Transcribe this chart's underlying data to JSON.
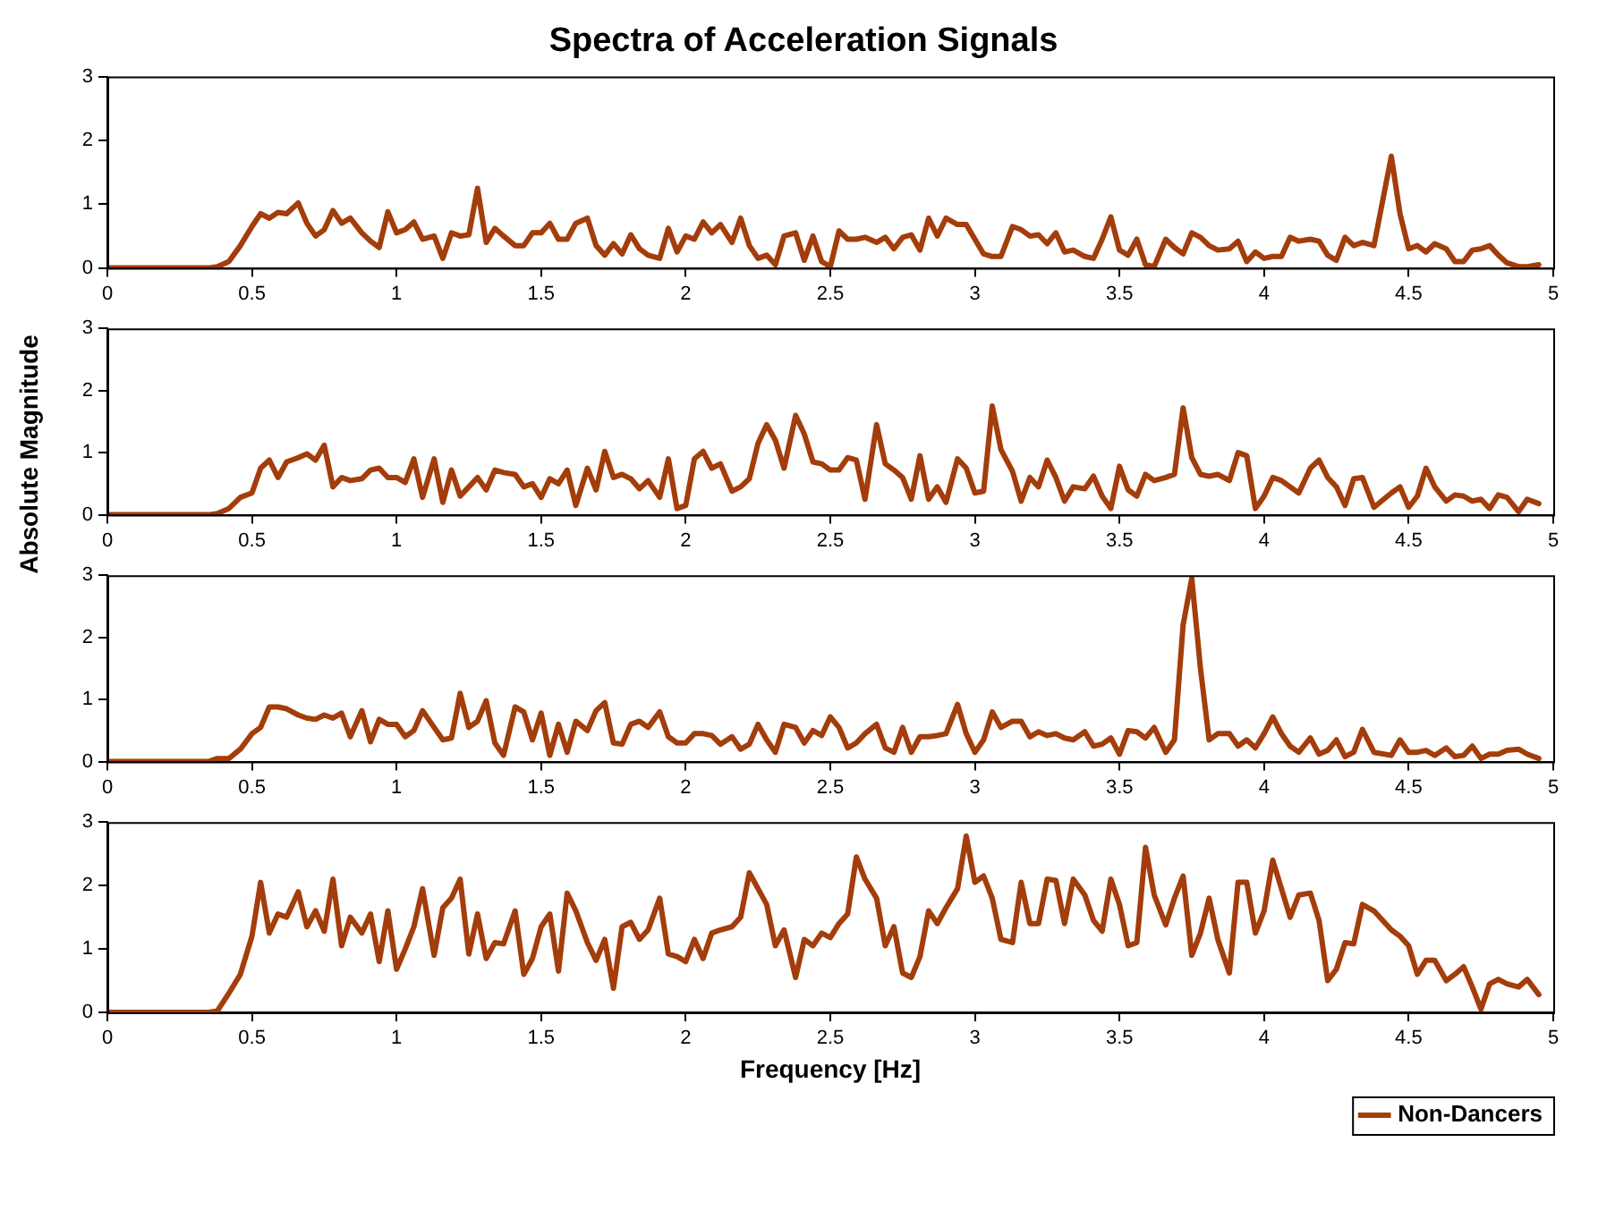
{
  "chart_data": [
    {
      "type": "line",
      "title": "Spectra of Acceleration Signals",
      "x": [
        0,
        0.35,
        0.38,
        0.42,
        0.46,
        0.5,
        0.53,
        0.56,
        0.59,
        0.62,
        0.66,
        0.69,
        0.72,
        0.75,
        0.78,
        0.81,
        0.84,
        0.88,
        0.91,
        0.94,
        0.97,
        1.0,
        1.03,
        1.06,
        1.09,
        1.13,
        1.16,
        1.19,
        1.22,
        1.25,
        1.28,
        1.31,
        1.34,
        1.37,
        1.41,
        1.44,
        1.47,
        1.5,
        1.53,
        1.56,
        1.59,
        1.62,
        1.66,
        1.69,
        1.72,
        1.75,
        1.78,
        1.81,
        1.84,
        1.87,
        1.91,
        1.94,
        1.97,
        2.0,
        2.03,
        2.06,
        2.09,
        2.12,
        2.16,
        2.19,
        2.22,
        2.25,
        2.28,
        2.31,
        2.34,
        2.38,
        2.41,
        2.44,
        2.47,
        2.5,
        2.53,
        2.56,
        2.59,
        2.62,
        2.66,
        2.69,
        2.72,
        2.75,
        2.78,
        2.81,
        2.84,
        2.87,
        2.9,
        2.94,
        2.97,
        3.0,
        3.03,
        3.06,
        3.09,
        3.13,
        3.16,
        3.19,
        3.22,
        3.25,
        3.28,
        3.31,
        3.34,
        3.38,
        3.41,
        3.44,
        3.47,
        3.5,
        3.53,
        3.56,
        3.59,
        3.62,
        3.66,
        3.69,
        3.72,
        3.75,
        3.78,
        3.81,
        3.84,
        3.88,
        3.91,
        3.94,
        3.97,
        4.0,
        4.03,
        4.06,
        4.09,
        4.12,
        4.16,
        4.19,
        4.22,
        4.25,
        4.28,
        4.31,
        4.34,
        4.38,
        4.44,
        4.47,
        4.5,
        4.53,
        4.56,
        4.59,
        4.63,
        4.66,
        4.69,
        4.72,
        4.75,
        4.78,
        4.81,
        4.84,
        4.88,
        4.91,
        4.95
      ],
      "series": [
        {
          "color": "#a33d0b",
          "values": [
            0,
            0,
            0.02,
            0.1,
            0.35,
            0.65,
            0.85,
            0.78,
            0.87,
            0.85,
            1.02,
            0.7,
            0.5,
            0.6,
            0.9,
            0.7,
            0.78,
            0.55,
            0.42,
            0.32,
            0.88,
            0.55,
            0.6,
            0.72,
            0.45,
            0.5,
            0.15,
            0.55,
            0.5,
            0.52,
            1.25,
            0.4,
            0.62,
            0.5,
            0.35,
            0.35,
            0.55,
            0.55,
            0.7,
            0.45,
            0.45,
            0.7,
            0.78,
            0.35,
            0.2,
            0.38,
            0.22,
            0.52,
            0.3,
            0.2,
            0.15,
            0.62,
            0.25,
            0.5,
            0.45,
            0.72,
            0.55,
            0.68,
            0.4,
            0.78,
            0.35,
            0.15,
            0.2,
            0.05,
            0.5,
            0.55,
            0.12,
            0.5,
            0.1,
            0.02,
            0.58,
            0.45,
            0.45,
            0.48,
            0.4,
            0.48,
            0.3,
            0.48,
            0.52,
            0.28,
            0.78,
            0.5,
            0.78,
            0.68,
            0.68,
            0.45,
            0.22,
            0.18,
            0.18,
            0.65,
            0.6,
            0.5,
            0.52,
            0.38,
            0.55,
            0.25,
            0.28,
            0.18,
            0.15,
            0.45,
            0.8,
            0.28,
            0.2,
            0.45,
            0.05,
            0.02,
            0.45,
            0.32,
            0.22,
            0.55,
            0.48,
            0.35,
            0.28,
            0.3,
            0.42,
            0.1,
            0.25,
            0.15,
            0.18,
            0.18,
            0.48,
            0.42,
            0.45,
            0.42,
            0.2,
            0.12,
            0.48,
            0.35,
            0.4,
            0.35,
            1.75,
            0.85,
            0.3,
            0.35,
            0.25,
            0.38,
            0.3,
            0.1,
            0.1,
            0.28,
            0.3,
            0.35,
            0.2,
            0.08,
            0.02,
            0.02,
            0.05
          ]
        }
      ],
      "xlim": [
        0,
        5
      ],
      "xticks": [
        0,
        0.5,
        1,
        1.5,
        2,
        2.5,
        3,
        3.5,
        4,
        4.5,
        5
      ],
      "ylim": [
        0,
        3
      ],
      "yticks": [
        0,
        1,
        2,
        3
      ],
      "grid": false,
      "legend": false,
      "marker": "none",
      "line_style": "solid"
    },
    {
      "type": "line",
      "ylabel": "Absolute Magnitude",
      "x": [
        0,
        0.35,
        0.38,
        0.42,
        0.46,
        0.5,
        0.53,
        0.56,
        0.59,
        0.62,
        0.66,
        0.69,
        0.72,
        0.75,
        0.78,
        0.81,
        0.84,
        0.88,
        0.91,
        0.94,
        0.97,
        1.0,
        1.03,
        1.06,
        1.09,
        1.13,
        1.16,
        1.19,
        1.22,
        1.25,
        1.28,
        1.31,
        1.34,
        1.37,
        1.41,
        1.44,
        1.47,
        1.5,
        1.53,
        1.56,
        1.59,
        1.62,
        1.66,
        1.69,
        1.72,
        1.75,
        1.78,
        1.81,
        1.84,
        1.87,
        1.91,
        1.94,
        1.97,
        2.0,
        2.03,
        2.06,
        2.09,
        2.12,
        2.16,
        2.19,
        2.22,
        2.25,
        2.28,
        2.31,
        2.34,
        2.38,
        2.41,
        2.44,
        2.47,
        2.5,
        2.53,
        2.56,
        2.59,
        2.62,
        2.66,
        2.69,
        2.72,
        2.75,
        2.78,
        2.81,
        2.84,
        2.87,
        2.9,
        2.94,
        2.97,
        3.0,
        3.03,
        3.06,
        3.09,
        3.13,
        3.16,
        3.19,
        3.22,
        3.25,
        3.28,
        3.31,
        3.34,
        3.38,
        3.41,
        3.44,
        3.47,
        3.5,
        3.53,
        3.56,
        3.59,
        3.62,
        3.66,
        3.69,
        3.72,
        3.75,
        3.78,
        3.81,
        3.84,
        3.88,
        3.91,
        3.94,
        3.97,
        4.0,
        4.03,
        4.06,
        4.09,
        4.12,
        4.16,
        4.19,
        4.22,
        4.25,
        4.28,
        4.31,
        4.34,
        4.38,
        4.44,
        4.47,
        4.5,
        4.53,
        4.56,
        4.59,
        4.63,
        4.66,
        4.69,
        4.72,
        4.75,
        4.78,
        4.81,
        4.84,
        4.88,
        4.91,
        4.95
      ],
      "series": [
        {
          "color": "#a33d0b",
          "values": [
            0,
            0,
            0.02,
            0.1,
            0.28,
            0.35,
            0.75,
            0.88,
            0.6,
            0.85,
            0.92,
            0.98,
            0.88,
            1.12,
            0.45,
            0.6,
            0.55,
            0.58,
            0.72,
            0.75,
            0.6,
            0.6,
            0.52,
            0.9,
            0.28,
            0.9,
            0.2,
            0.72,
            0.3,
            0.45,
            0.6,
            0.4,
            0.72,
            0.68,
            0.65,
            0.45,
            0.5,
            0.28,
            0.58,
            0.5,
            0.72,
            0.15,
            0.75,
            0.4,
            1.02,
            0.6,
            0.65,
            0.58,
            0.42,
            0.55,
            0.28,
            0.9,
            0.1,
            0.15,
            0.9,
            1.02,
            0.75,
            0.82,
            0.38,
            0.45,
            0.58,
            1.15,
            1.45,
            1.2,
            0.75,
            1.6,
            1.3,
            0.85,
            0.82,
            0.72,
            0.72,
            0.92,
            0.88,
            0.25,
            1.45,
            0.82,
            0.72,
            0.6,
            0.25,
            0.95,
            0.25,
            0.45,
            0.2,
            0.9,
            0.75,
            0.35,
            0.38,
            1.75,
            1.05,
            0.7,
            0.22,
            0.6,
            0.45,
            0.88,
            0.6,
            0.22,
            0.45,
            0.42,
            0.62,
            0.3,
            0.1,
            0.78,
            0.4,
            0.3,
            0.65,
            0.55,
            0.6,
            0.65,
            1.72,
            0.92,
            0.65,
            0.62,
            0.65,
            0.55,
            1.0,
            0.95,
            0.1,
            0.3,
            0.6,
            0.55,
            0.45,
            0.35,
            0.75,
            0.88,
            0.6,
            0.45,
            0.15,
            0.58,
            0.6,
            0.12,
            0.35,
            0.45,
            0.12,
            0.3,
            0.75,
            0.45,
            0.22,
            0.32,
            0.3,
            0.22,
            0.25,
            0.1,
            0.32,
            0.28,
            0.05,
            0.25,
            0.18
          ]
        }
      ],
      "xlim": [
        0,
        5
      ],
      "xticks": [
        0,
        0.5,
        1,
        1.5,
        2,
        2.5,
        3,
        3.5,
        4,
        4.5,
        5
      ],
      "ylim": [
        0,
        3
      ],
      "yticks": [
        0,
        1,
        2,
        3
      ],
      "grid": false,
      "legend": false,
      "marker": "none",
      "line_style": "solid"
    },
    {
      "type": "line",
      "x": [
        0,
        0.35,
        0.38,
        0.42,
        0.46,
        0.5,
        0.53,
        0.56,
        0.59,
        0.62,
        0.66,
        0.69,
        0.72,
        0.75,
        0.78,
        0.81,
        0.84,
        0.88,
        0.91,
        0.94,
        0.97,
        1.0,
        1.03,
        1.06,
        1.09,
        1.13,
        1.16,
        1.19,
        1.22,
        1.25,
        1.28,
        1.31,
        1.34,
        1.37,
        1.41,
        1.44,
        1.47,
        1.5,
        1.53,
        1.56,
        1.59,
        1.62,
        1.66,
        1.69,
        1.72,
        1.75,
        1.78,
        1.81,
        1.84,
        1.87,
        1.91,
        1.94,
        1.97,
        2.0,
        2.03,
        2.06,
        2.09,
        2.12,
        2.16,
        2.19,
        2.22,
        2.25,
        2.28,
        2.31,
        2.34,
        2.38,
        2.41,
        2.44,
        2.47,
        2.5,
        2.53,
        2.56,
        2.59,
        2.62,
        2.66,
        2.69,
        2.72,
        2.75,
        2.78,
        2.81,
        2.84,
        2.87,
        2.9,
        2.94,
        2.97,
        3.0,
        3.03,
        3.06,
        3.09,
        3.13,
        3.16,
        3.19,
        3.22,
        3.25,
        3.28,
        3.31,
        3.34,
        3.38,
        3.41,
        3.44,
        3.47,
        3.5,
        3.53,
        3.56,
        3.59,
        3.62,
        3.66,
        3.69,
        3.72,
        3.75,
        3.78,
        3.81,
        3.84,
        3.88,
        3.91,
        3.94,
        3.97,
        4.0,
        4.03,
        4.06,
        4.09,
        4.12,
        4.16,
        4.19,
        4.22,
        4.25,
        4.28,
        4.31,
        4.34,
        4.38,
        4.44,
        4.47,
        4.5,
        4.53,
        4.56,
        4.59,
        4.63,
        4.66,
        4.69,
        4.72,
        4.75,
        4.78,
        4.81,
        4.84,
        4.88,
        4.91,
        4.95
      ],
      "series": [
        {
          "color": "#a33d0b",
          "values": [
            0,
            0,
            0.05,
            0.05,
            0.2,
            0.45,
            0.55,
            0.88,
            0.88,
            0.85,
            0.75,
            0.7,
            0.68,
            0.75,
            0.7,
            0.78,
            0.4,
            0.82,
            0.32,
            0.68,
            0.6,
            0.6,
            0.4,
            0.5,
            0.82,
            0.55,
            0.35,
            0.38,
            1.1,
            0.55,
            0.65,
            0.98,
            0.3,
            0.1,
            0.88,
            0.8,
            0.35,
            0.78,
            0.1,
            0.6,
            0.15,
            0.65,
            0.5,
            0.82,
            0.95,
            0.3,
            0.28,
            0.6,
            0.65,
            0.55,
            0.8,
            0.4,
            0.3,
            0.3,
            0.45,
            0.45,
            0.42,
            0.28,
            0.4,
            0.2,
            0.28,
            0.6,
            0.35,
            0.15,
            0.6,
            0.55,
            0.3,
            0.5,
            0.42,
            0.72,
            0.55,
            0.22,
            0.3,
            0.45,
            0.6,
            0.22,
            0.15,
            0.55,
            0.15,
            0.4,
            0.4,
            0.42,
            0.45,
            0.92,
            0.45,
            0.15,
            0.35,
            0.8,
            0.55,
            0.65,
            0.65,
            0.4,
            0.48,
            0.42,
            0.45,
            0.38,
            0.35,
            0.48,
            0.25,
            0.28,
            0.38,
            0.12,
            0.5,
            0.48,
            0.38,
            0.55,
            0.15,
            0.35,
            2.2,
            2.95,
            1.5,
            0.35,
            0.45,
            0.45,
            0.25,
            0.35,
            0.22,
            0.45,
            0.72,
            0.45,
            0.25,
            0.15,
            0.38,
            0.12,
            0.18,
            0.35,
            0.08,
            0.15,
            0.52,
            0.15,
            0.1,
            0.35,
            0.15,
            0.15,
            0.18,
            0.1,
            0.22,
            0.08,
            0.1,
            0.25,
            0.05,
            0.12,
            0.12,
            0.18,
            0.2,
            0.12,
            0.05
          ]
        }
      ],
      "xlim": [
        0,
        5
      ],
      "xticks": [
        0,
        0.5,
        1,
        1.5,
        2,
        2.5,
        3,
        3.5,
        4,
        4.5,
        5
      ],
      "ylim": [
        0,
        3
      ],
      "yticks": [
        0,
        1,
        2,
        3
      ],
      "grid": false,
      "legend": false,
      "marker": "none",
      "line_style": "solid"
    },
    {
      "type": "line",
      "xlabel": "Frequency [Hz]",
      "x": [
        0,
        0.35,
        0.38,
        0.42,
        0.46,
        0.5,
        0.53,
        0.56,
        0.59,
        0.62,
        0.66,
        0.69,
        0.72,
        0.75,
        0.78,
        0.81,
        0.84,
        0.88,
        0.91,
        0.94,
        0.97,
        1.0,
        1.03,
        1.06,
        1.09,
        1.13,
        1.16,
        1.19,
        1.22,
        1.25,
        1.28,
        1.31,
        1.34,
        1.37,
        1.41,
        1.44,
        1.47,
        1.5,
        1.53,
        1.56,
        1.59,
        1.62,
        1.66,
        1.69,
        1.72,
        1.75,
        1.78,
        1.81,
        1.84,
        1.87,
        1.91,
        1.94,
        1.97,
        2.0,
        2.03,
        2.06,
        2.09,
        2.12,
        2.16,
        2.19,
        2.22,
        2.25,
        2.28,
        2.31,
        2.34,
        2.38,
        2.41,
        2.44,
        2.47,
        2.5,
        2.53,
        2.56,
        2.59,
        2.62,
        2.66,
        2.69,
        2.72,
        2.75,
        2.78,
        2.81,
        2.84,
        2.87,
        2.9,
        2.94,
        2.97,
        3.0,
        3.03,
        3.06,
        3.09,
        3.13,
        3.16,
        3.19,
        3.22,
        3.25,
        3.28,
        3.31,
        3.34,
        3.38,
        3.41,
        3.44,
        3.47,
        3.5,
        3.53,
        3.56,
        3.59,
        3.62,
        3.66,
        3.69,
        3.72,
        3.75,
        3.78,
        3.81,
        3.84,
        3.88,
        3.91,
        3.94,
        3.97,
        4.0,
        4.03,
        4.06,
        4.09,
        4.12,
        4.16,
        4.19,
        4.22,
        4.25,
        4.28,
        4.31,
        4.34,
        4.38,
        4.44,
        4.47,
        4.5,
        4.53,
        4.56,
        4.59,
        4.63,
        4.66,
        4.69,
        4.72,
        4.75,
        4.78,
        4.81,
        4.84,
        4.88,
        4.91,
        4.95
      ],
      "series": [
        {
          "name": "Non-Dancers",
          "color": "#a33d0b",
          "values": [
            0,
            0,
            0.02,
            0.3,
            0.6,
            1.2,
            2.05,
            1.25,
            1.55,
            1.5,
            1.9,
            1.35,
            1.6,
            1.28,
            2.1,
            1.05,
            1.5,
            1.25,
            1.55,
            0.8,
            1.6,
            0.68,
            1.0,
            1.35,
            1.95,
            0.9,
            1.65,
            1.8,
            2.1,
            0.92,
            1.55,
            0.85,
            1.1,
            1.08,
            1.6,
            0.6,
            0.85,
            1.35,
            1.55,
            0.65,
            1.88,
            1.6,
            1.1,
            0.82,
            1.15,
            0.38,
            1.35,
            1.42,
            1.15,
            1.3,
            1.8,
            0.92,
            0.88,
            0.8,
            1.15,
            0.85,
            1.25,
            1.3,
            1.35,
            1.5,
            2.2,
            1.95,
            1.7,
            1.05,
            1.3,
            0.55,
            1.15,
            1.05,
            1.25,
            1.18,
            1.4,
            1.55,
            2.45,
            2.1,
            1.8,
            1.05,
            1.35,
            0.62,
            0.55,
            0.88,
            1.6,
            1.4,
            1.65,
            1.95,
            2.78,
            2.05,
            2.15,
            1.8,
            1.15,
            1.1,
            2.05,
            1.4,
            1.4,
            2.1,
            2.08,
            1.4,
            2.1,
            1.85,
            1.45,
            1.28,
            2.1,
            1.7,
            1.05,
            1.1,
            2.6,
            1.85,
            1.38,
            1.8,
            2.15,
            0.9,
            1.25,
            1.8,
            1.15,
            0.62,
            2.05,
            2.05,
            1.25,
            1.6,
            2.4,
            1.95,
            1.5,
            1.85,
            1.88,
            1.45,
            0.5,
            0.68,
            1.1,
            1.08,
            1.7,
            1.6,
            1.3,
            1.2,
            1.05,
            0.6,
            0.82,
            0.82,
            0.5,
            0.6,
            0.72,
            0.4,
            0.05,
            0.45,
            0.52,
            0.45,
            0.4,
            0.52,
            0.28
          ]
        }
      ],
      "xlim": [
        0,
        5
      ],
      "xticks": [
        0,
        0.5,
        1,
        1.5,
        2,
        2.5,
        3,
        3.5,
        4,
        4.5,
        5
      ],
      "ylim": [
        0,
        3
      ],
      "yticks": [
        0,
        1,
        2,
        3
      ],
      "grid": false,
      "legend": "bottom right",
      "marker": "none",
      "line_style": "solid"
    }
  ]
}
